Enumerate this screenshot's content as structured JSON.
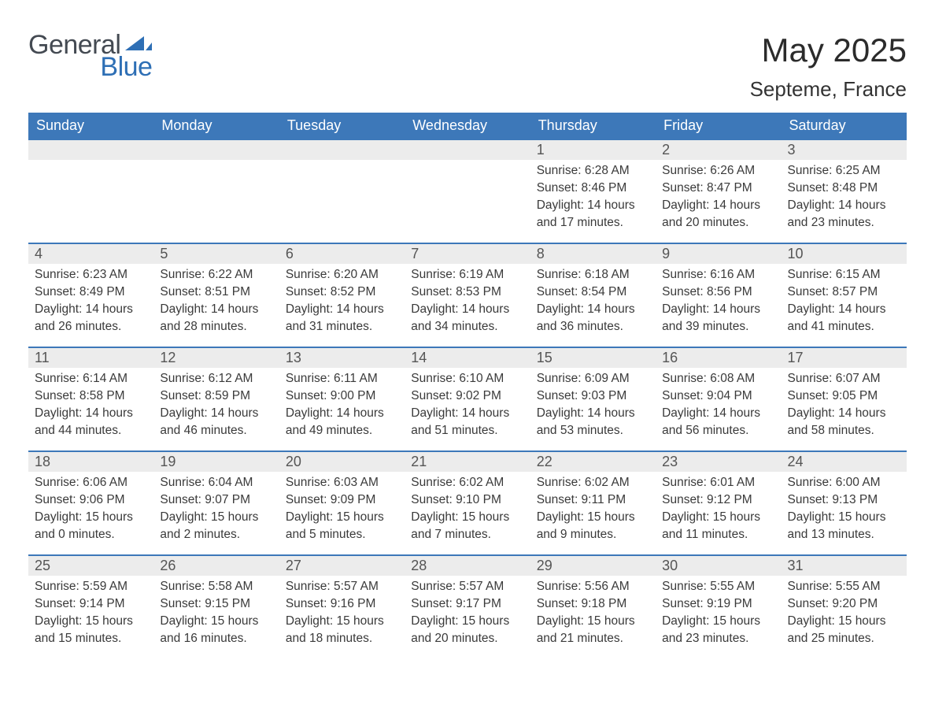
{
  "logo": {
    "word1": "General",
    "word2": "Blue",
    "triangle_color": "#2e6fb5",
    "text1_color": "#444a52"
  },
  "title": "May 2025",
  "location": "Septeme, France",
  "colors": {
    "header_bg": "#3d78b9",
    "header_text": "#ffffff",
    "daynum_bg": "#ececec",
    "daynum_text": "#555555",
    "row_border": "#3d78b9",
    "body_text": "#3a3a3a",
    "page_bg": "#ffffff"
  },
  "day_headers": [
    "Sunday",
    "Monday",
    "Tuesday",
    "Wednesday",
    "Thursday",
    "Friday",
    "Saturday"
  ],
  "weeks": [
    [
      null,
      null,
      null,
      null,
      {
        "n": "1",
        "sunrise": "Sunrise: 6:28 AM",
        "sunset": "Sunset: 8:46 PM",
        "d1": "Daylight: 14 hours",
        "d2": "and 17 minutes."
      },
      {
        "n": "2",
        "sunrise": "Sunrise: 6:26 AM",
        "sunset": "Sunset: 8:47 PM",
        "d1": "Daylight: 14 hours",
        "d2": "and 20 minutes."
      },
      {
        "n": "3",
        "sunrise": "Sunrise: 6:25 AM",
        "sunset": "Sunset: 8:48 PM",
        "d1": "Daylight: 14 hours",
        "d2": "and 23 minutes."
      }
    ],
    [
      {
        "n": "4",
        "sunrise": "Sunrise: 6:23 AM",
        "sunset": "Sunset: 8:49 PM",
        "d1": "Daylight: 14 hours",
        "d2": "and 26 minutes."
      },
      {
        "n": "5",
        "sunrise": "Sunrise: 6:22 AM",
        "sunset": "Sunset: 8:51 PM",
        "d1": "Daylight: 14 hours",
        "d2": "and 28 minutes."
      },
      {
        "n": "6",
        "sunrise": "Sunrise: 6:20 AM",
        "sunset": "Sunset: 8:52 PM",
        "d1": "Daylight: 14 hours",
        "d2": "and 31 minutes."
      },
      {
        "n": "7",
        "sunrise": "Sunrise: 6:19 AM",
        "sunset": "Sunset: 8:53 PM",
        "d1": "Daylight: 14 hours",
        "d2": "and 34 minutes."
      },
      {
        "n": "8",
        "sunrise": "Sunrise: 6:18 AM",
        "sunset": "Sunset: 8:54 PM",
        "d1": "Daylight: 14 hours",
        "d2": "and 36 minutes."
      },
      {
        "n": "9",
        "sunrise": "Sunrise: 6:16 AM",
        "sunset": "Sunset: 8:56 PM",
        "d1": "Daylight: 14 hours",
        "d2": "and 39 minutes."
      },
      {
        "n": "10",
        "sunrise": "Sunrise: 6:15 AM",
        "sunset": "Sunset: 8:57 PM",
        "d1": "Daylight: 14 hours",
        "d2": "and 41 minutes."
      }
    ],
    [
      {
        "n": "11",
        "sunrise": "Sunrise: 6:14 AM",
        "sunset": "Sunset: 8:58 PM",
        "d1": "Daylight: 14 hours",
        "d2": "and 44 minutes."
      },
      {
        "n": "12",
        "sunrise": "Sunrise: 6:12 AM",
        "sunset": "Sunset: 8:59 PM",
        "d1": "Daylight: 14 hours",
        "d2": "and 46 minutes."
      },
      {
        "n": "13",
        "sunrise": "Sunrise: 6:11 AM",
        "sunset": "Sunset: 9:00 PM",
        "d1": "Daylight: 14 hours",
        "d2": "and 49 minutes."
      },
      {
        "n": "14",
        "sunrise": "Sunrise: 6:10 AM",
        "sunset": "Sunset: 9:02 PM",
        "d1": "Daylight: 14 hours",
        "d2": "and 51 minutes."
      },
      {
        "n": "15",
        "sunrise": "Sunrise: 6:09 AM",
        "sunset": "Sunset: 9:03 PM",
        "d1": "Daylight: 14 hours",
        "d2": "and 53 minutes."
      },
      {
        "n": "16",
        "sunrise": "Sunrise: 6:08 AM",
        "sunset": "Sunset: 9:04 PM",
        "d1": "Daylight: 14 hours",
        "d2": "and 56 minutes."
      },
      {
        "n": "17",
        "sunrise": "Sunrise: 6:07 AM",
        "sunset": "Sunset: 9:05 PM",
        "d1": "Daylight: 14 hours",
        "d2": "and 58 minutes."
      }
    ],
    [
      {
        "n": "18",
        "sunrise": "Sunrise: 6:06 AM",
        "sunset": "Sunset: 9:06 PM",
        "d1": "Daylight: 15 hours",
        "d2": "and 0 minutes."
      },
      {
        "n": "19",
        "sunrise": "Sunrise: 6:04 AM",
        "sunset": "Sunset: 9:07 PM",
        "d1": "Daylight: 15 hours",
        "d2": "and 2 minutes."
      },
      {
        "n": "20",
        "sunrise": "Sunrise: 6:03 AM",
        "sunset": "Sunset: 9:09 PM",
        "d1": "Daylight: 15 hours",
        "d2": "and 5 minutes."
      },
      {
        "n": "21",
        "sunrise": "Sunrise: 6:02 AM",
        "sunset": "Sunset: 9:10 PM",
        "d1": "Daylight: 15 hours",
        "d2": "and 7 minutes."
      },
      {
        "n": "22",
        "sunrise": "Sunrise: 6:02 AM",
        "sunset": "Sunset: 9:11 PM",
        "d1": "Daylight: 15 hours",
        "d2": "and 9 minutes."
      },
      {
        "n": "23",
        "sunrise": "Sunrise: 6:01 AM",
        "sunset": "Sunset: 9:12 PM",
        "d1": "Daylight: 15 hours",
        "d2": "and 11 minutes."
      },
      {
        "n": "24",
        "sunrise": "Sunrise: 6:00 AM",
        "sunset": "Sunset: 9:13 PM",
        "d1": "Daylight: 15 hours",
        "d2": "and 13 minutes."
      }
    ],
    [
      {
        "n": "25",
        "sunrise": "Sunrise: 5:59 AM",
        "sunset": "Sunset: 9:14 PM",
        "d1": "Daylight: 15 hours",
        "d2": "and 15 minutes."
      },
      {
        "n": "26",
        "sunrise": "Sunrise: 5:58 AM",
        "sunset": "Sunset: 9:15 PM",
        "d1": "Daylight: 15 hours",
        "d2": "and 16 minutes."
      },
      {
        "n": "27",
        "sunrise": "Sunrise: 5:57 AM",
        "sunset": "Sunset: 9:16 PM",
        "d1": "Daylight: 15 hours",
        "d2": "and 18 minutes."
      },
      {
        "n": "28",
        "sunrise": "Sunrise: 5:57 AM",
        "sunset": "Sunset: 9:17 PM",
        "d1": "Daylight: 15 hours",
        "d2": "and 20 minutes."
      },
      {
        "n": "29",
        "sunrise": "Sunrise: 5:56 AM",
        "sunset": "Sunset: 9:18 PM",
        "d1": "Daylight: 15 hours",
        "d2": "and 21 minutes."
      },
      {
        "n": "30",
        "sunrise": "Sunrise: 5:55 AM",
        "sunset": "Sunset: 9:19 PM",
        "d1": "Daylight: 15 hours",
        "d2": "and 23 minutes."
      },
      {
        "n": "31",
        "sunrise": "Sunrise: 5:55 AM",
        "sunset": "Sunset: 9:20 PM",
        "d1": "Daylight: 15 hours",
        "d2": "and 25 minutes."
      }
    ]
  ]
}
